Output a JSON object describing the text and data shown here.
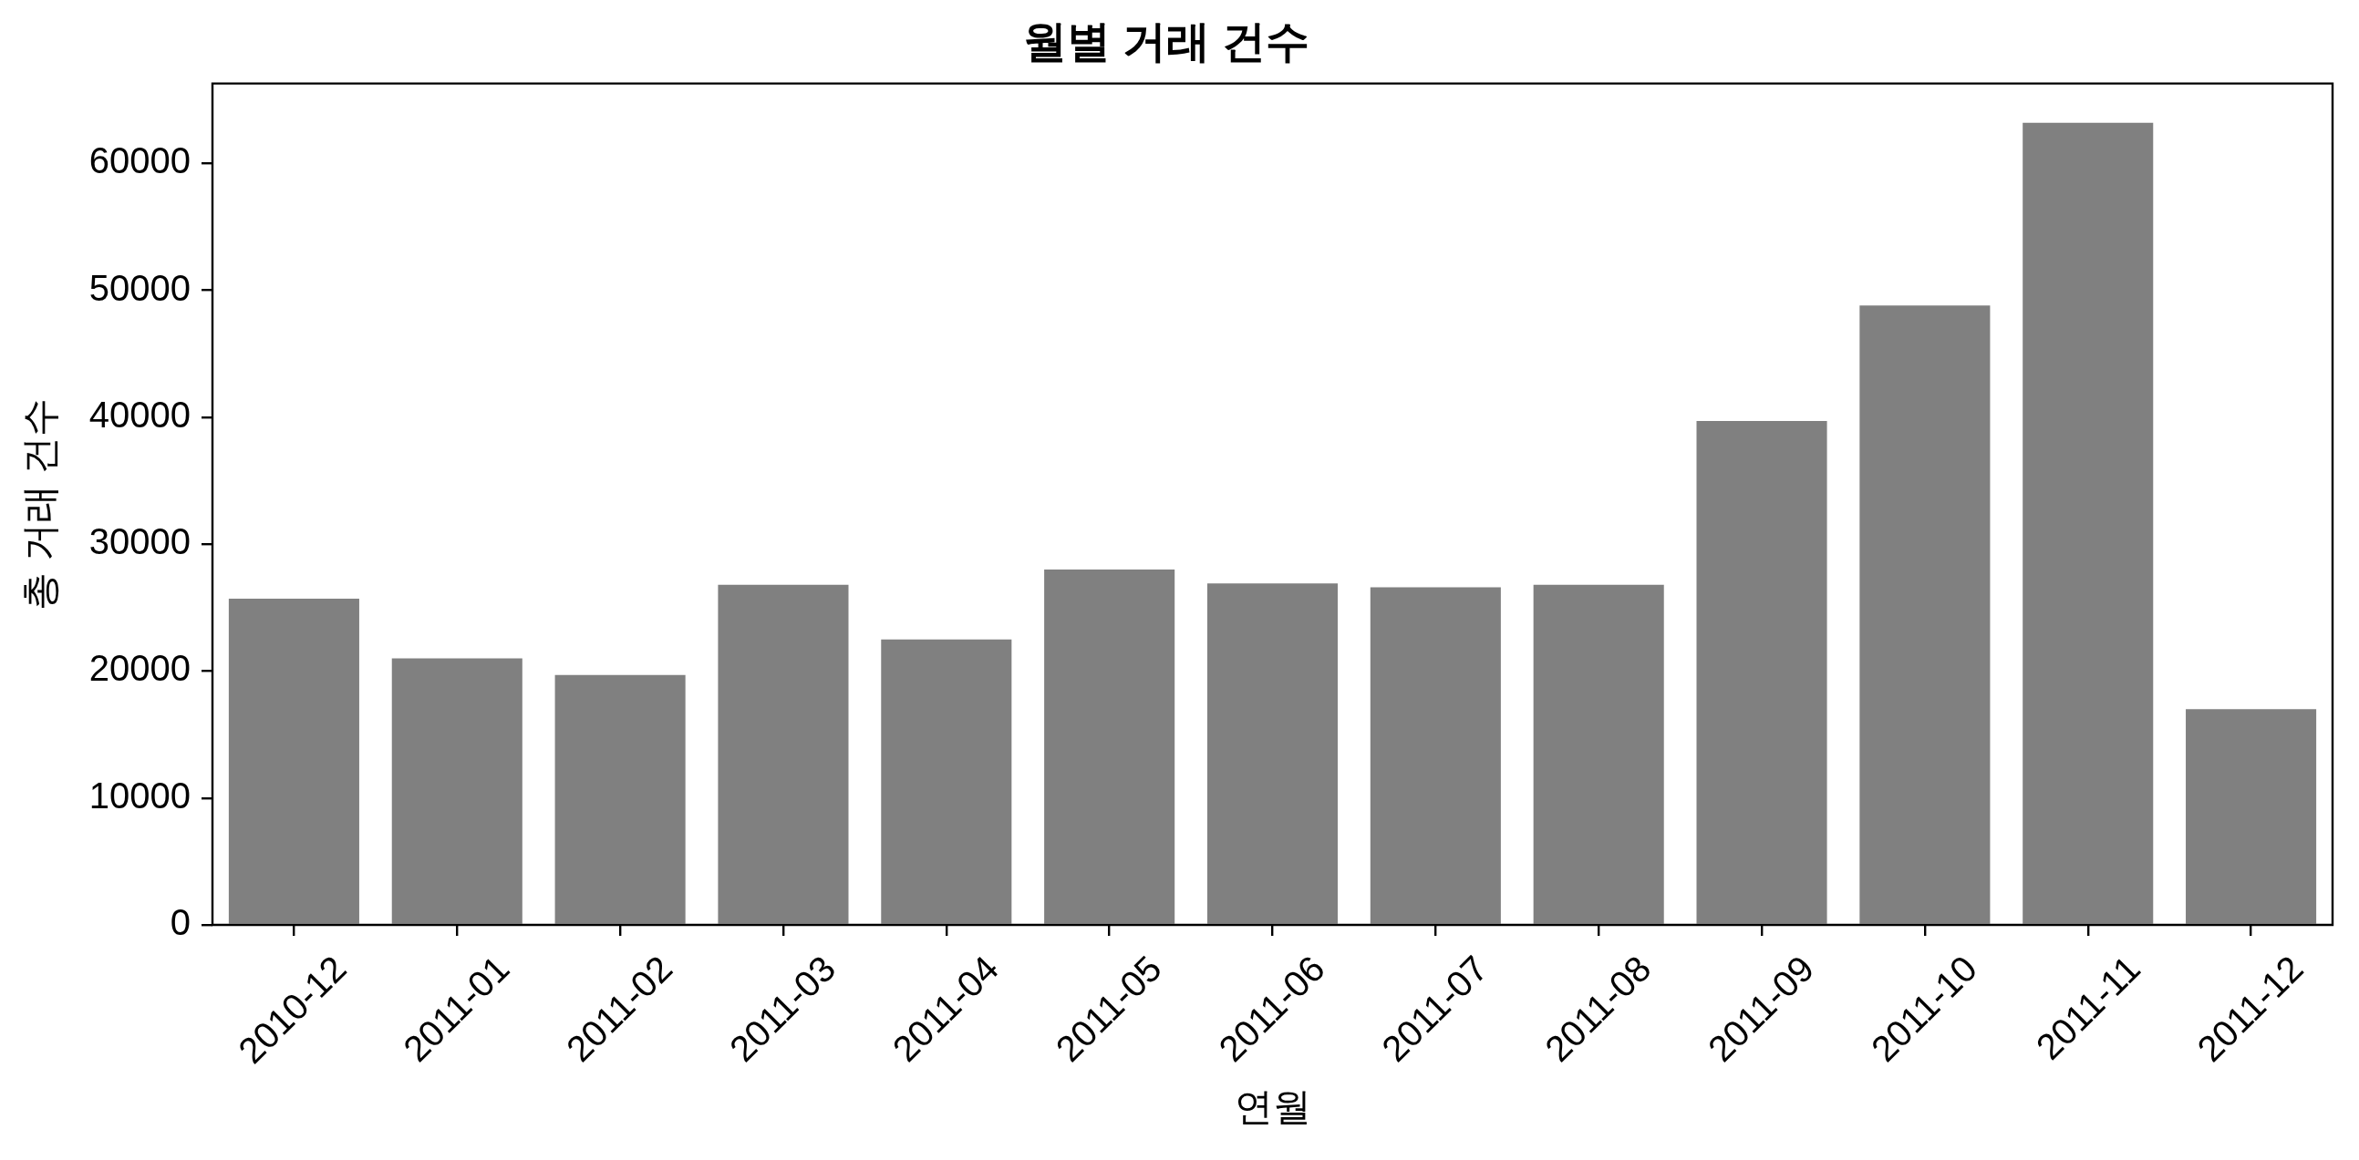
{
  "chart_data": {
    "type": "bar",
    "title": "월별 거래 건수",
    "xlabel": "연월",
    "ylabel": "총 거래 건수",
    "categories": [
      "2010-12",
      "2011-01",
      "2011-02",
      "2011-03",
      "2011-04",
      "2011-05",
      "2011-06",
      "2011-07",
      "2011-08",
      "2011-09",
      "2011-10",
      "2011-11",
      "2011-12"
    ],
    "values": [
      25700,
      21000,
      19700,
      26800,
      22500,
      28000,
      26900,
      26600,
      26800,
      39700,
      48800,
      63200,
      17000
    ],
    "color": "#808080",
    "ylim": [
      0,
      66300
    ],
    "yticks": [
      0,
      10000,
      20000,
      30000,
      40000,
      50000,
      60000
    ],
    "grid": false,
    "legend": false
  }
}
